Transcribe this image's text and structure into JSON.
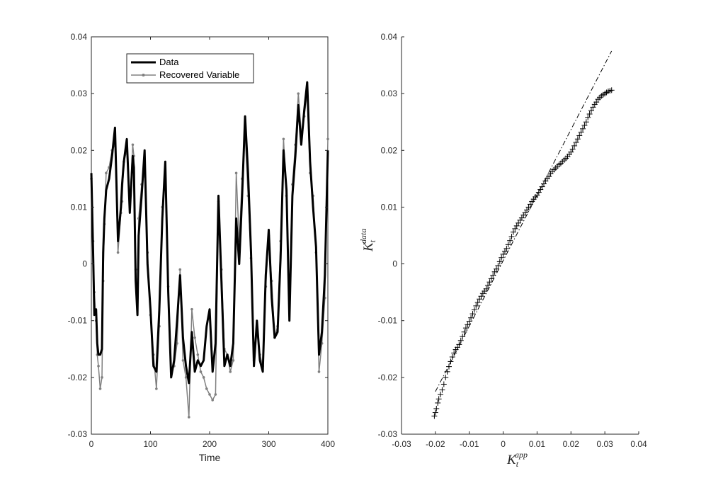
{
  "chart_data": [
    {
      "type": "line",
      "xlabel": "Time",
      "ylabel": "",
      "xlim": [
        0,
        400
      ],
      "ylim": [
        -0.03,
        0.04
      ],
      "xticks": [
        "0",
        "100",
        "200",
        "300",
        "400"
      ],
      "yticks": [
        "-0.03",
        "-0.02",
        "-0.01",
        "0",
        "0.01",
        "0.02",
        "0.03",
        "0.04"
      ],
      "legend": {
        "placement": "top-left",
        "entries": [
          "Data",
          "Recovered Variable"
        ]
      },
      "series": [
        {
          "name": "Data",
          "color": "#000000",
          "x": [
            0,
            3,
            5,
            8,
            10,
            12,
            15,
            18,
            20,
            22,
            25,
            30,
            35,
            40,
            45,
            50,
            52,
            55,
            60,
            65,
            70,
            72,
            75,
            78,
            80,
            85,
            90,
            95,
            100,
            105,
            110,
            115,
            120,
            125,
            130,
            135,
            140,
            145,
            150,
            155,
            160,
            165,
            170,
            175,
            180,
            185,
            190,
            195,
            200,
            205,
            210,
            215,
            220,
            225,
            230,
            235,
            240,
            245,
            250,
            255,
            260,
            265,
            270,
            275,
            280,
            285,
            290,
            295,
            300,
            305,
            310,
            315,
            320,
            325,
            330,
            335,
            340,
            345,
            350,
            355,
            360,
            365,
            370,
            375,
            380,
            385,
            390,
            395,
            400
          ],
          "y": [
            0.016,
            0.002,
            -0.009,
            -0.008,
            -0.014,
            -0.016,
            -0.016,
            -0.015,
            0.002,
            0.008,
            0.013,
            0.015,
            0.019,
            0.024,
            0.004,
            0.01,
            0.014,
            0.018,
            0.022,
            0.009,
            0.019,
            0.017,
            -0.003,
            -0.009,
            0.005,
            0.012,
            0.02,
            0.0,
            -0.008,
            -0.018,
            -0.019,
            -0.008,
            0.008,
            0.018,
            -0.005,
            -0.02,
            -0.017,
            -0.01,
            -0.002,
            -0.013,
            -0.018,
            -0.021,
            -0.012,
            -0.019,
            -0.017,
            -0.018,
            -0.017,
            -0.011,
            -0.008,
            -0.019,
            -0.014,
            0.012,
            -0.003,
            -0.018,
            -0.016,
            -0.018,
            -0.014,
            0.008,
            0.0,
            0.012,
            0.026,
            0.016,
            0.002,
            -0.018,
            -0.01,
            -0.017,
            -0.019,
            -0.002,
            0.006,
            -0.006,
            -0.013,
            -0.012,
            0.001,
            0.02,
            0.013,
            -0.01,
            0.012,
            0.019,
            0.028,
            0.021,
            0.027,
            0.032,
            0.018,
            0.01,
            0.003,
            -0.016,
            -0.012,
            -0.002,
            0.02
          ]
        },
        {
          "name": "Recovered Variable",
          "color": "#808080",
          "x": [
            0,
            3,
            5,
            8,
            10,
            12,
            15,
            18,
            20,
            22,
            25,
            30,
            35,
            40,
            45,
            50,
            52,
            55,
            60,
            65,
            70,
            72,
            75,
            78,
            80,
            85,
            90,
            95,
            100,
            105,
            110,
            115,
            120,
            125,
            130,
            135,
            140,
            145,
            150,
            155,
            160,
            165,
            170,
            175,
            180,
            185,
            190,
            195,
            200,
            205,
            210,
            215,
            220,
            225,
            230,
            235,
            240,
            245,
            250,
            255,
            260,
            265,
            270,
            275,
            280,
            285,
            290,
            295,
            300,
            305,
            310,
            315,
            320,
            325,
            330,
            335,
            340,
            345,
            350,
            355,
            360,
            365,
            370,
            375,
            380,
            385,
            390,
            395,
            400
          ],
          "y": [
            0.015,
            0.004,
            -0.005,
            -0.01,
            -0.016,
            -0.018,
            -0.022,
            -0.02,
            -0.003,
            0.007,
            0.016,
            0.017,
            0.02,
            0.021,
            0.002,
            0.009,
            0.011,
            0.018,
            0.02,
            0.01,
            0.021,
            0.019,
            -0.001,
            -0.006,
            0.008,
            0.014,
            0.016,
            0.002,
            -0.009,
            -0.016,
            -0.022,
            -0.011,
            0.01,
            0.015,
            -0.004,
            -0.019,
            -0.018,
            -0.014,
            -0.001,
            -0.017,
            -0.02,
            -0.027,
            -0.008,
            -0.013,
            -0.016,
            -0.019,
            -0.02,
            -0.022,
            -0.023,
            -0.024,
            -0.023,
            0.011,
            -0.001,
            -0.015,
            -0.016,
            -0.019,
            -0.017,
            0.016,
            0.004,
            0.015,
            0.023,
            0.012,
            0.001,
            -0.017,
            -0.012,
            -0.016,
            -0.018,
            -0.004,
            0.005,
            -0.003,
            -0.013,
            -0.011,
            0.004,
            0.022,
            0.012,
            -0.007,
            0.014,
            0.021,
            0.03,
            0.023,
            0.026,
            0.03,
            0.016,
            0.012,
            0.002,
            -0.019,
            -0.014,
            -0.006,
            0.022
          ]
        }
      ]
    },
    {
      "type": "scatter",
      "xlim": [
        -0.03,
        0.04
      ],
      "ylim": [
        -0.03,
        0.04
      ],
      "xticks": [
        "-0.03",
        "-0.02",
        "-0.01",
        "0",
        "0.01",
        "0.02",
        "0.03",
        "0.04"
      ],
      "yticks": [
        "-0.03",
        "-0.02",
        "-0.01",
        "0",
        "0.01",
        "0.02",
        "0.03",
        "0.04"
      ],
      "xlabel_base": "K",
      "xlabel_sub": "t",
      "xlabel_sup": "app",
      "ylabel_base": "K",
      "ylabel_sub": "t",
      "ylabel_sup": "data",
      "marker": "+",
      "reference_line": {
        "style": "dash-dot",
        "x": [
          -0.02,
          0.032
        ],
        "y": [
          -0.0225,
          0.0375
        ]
      },
      "points": {
        "x": [
          -0.0203,
          -0.02,
          -0.0197,
          -0.0193,
          -0.019,
          -0.0185,
          -0.018,
          -0.0175,
          -0.017,
          -0.0165,
          -0.016,
          -0.0155,
          -0.015,
          -0.0145,
          -0.014,
          -0.0135,
          -0.013,
          -0.0125,
          -0.012,
          -0.0115,
          -0.011,
          -0.0105,
          -0.01,
          -0.0095,
          -0.009,
          -0.0085,
          -0.008,
          -0.0075,
          -0.007,
          -0.0065,
          -0.006,
          -0.0055,
          -0.005,
          -0.0045,
          -0.004,
          -0.0035,
          -0.003,
          -0.0025,
          -0.002,
          -0.0015,
          -0.001,
          -0.0005,
          0.0,
          0.0005,
          0.001,
          0.0015,
          0.002,
          0.0025,
          0.003,
          0.0035,
          0.004,
          0.0045,
          0.005,
          0.0055,
          0.006,
          0.0065,
          0.007,
          0.0075,
          0.008,
          0.0085,
          0.009,
          0.0095,
          0.01,
          0.0105,
          0.011,
          0.0115,
          0.012,
          0.0125,
          0.013,
          0.0135,
          0.014,
          0.0145,
          0.015,
          0.0155,
          0.016,
          0.0165,
          0.017,
          0.0175,
          0.018,
          0.0185,
          0.019,
          0.0195,
          0.02,
          0.0205,
          0.021,
          0.0215,
          0.022,
          0.0225,
          0.023,
          0.0235,
          0.024,
          0.0245,
          0.025,
          0.0255,
          0.026,
          0.0265,
          0.027,
          0.0275,
          0.028,
          0.0285,
          0.029,
          0.0295,
          0.03,
          0.0305,
          0.031,
          0.0315,
          0.032
        ],
        "y": [
          -0.0268,
          -0.0262,
          -0.0255,
          -0.0245,
          -0.0238,
          -0.023,
          -0.0222,
          -0.0212,
          -0.02,
          -0.019,
          -0.0181,
          -0.0172,
          -0.0164,
          -0.0157,
          -0.0151,
          -0.0147,
          -0.0142,
          -0.0135,
          -0.0128,
          -0.012,
          -0.0113,
          -0.0107,
          -0.0101,
          -0.0095,
          -0.0088,
          -0.0081,
          -0.0074,
          -0.0068,
          -0.0062,
          -0.0057,
          -0.0052,
          -0.0048,
          -0.0044,
          -0.0038,
          -0.0032,
          -0.0026,
          -0.002,
          -0.0014,
          -0.0009,
          -0.0003,
          0.0004,
          0.0011,
          0.0017,
          0.0022,
          0.0027,
          0.0034,
          0.0041,
          0.0048,
          0.0056,
          0.0062,
          0.0067,
          0.0072,
          0.0077,
          0.0081,
          0.0086,
          0.009,
          0.0095,
          0.01,
          0.0105,
          0.011,
          0.0114,
          0.0118,
          0.0121,
          0.0126,
          0.0131,
          0.0136,
          0.0141,
          0.0146,
          0.015,
          0.0154,
          0.0159,
          0.0163,
          0.0166,
          0.0169,
          0.0172,
          0.0175,
          0.0177,
          0.018,
          0.0183,
          0.0186,
          0.0189,
          0.0193,
          0.0197,
          0.0202,
          0.0208,
          0.0214,
          0.022,
          0.0226,
          0.0232,
          0.0238,
          0.0244,
          0.025,
          0.0258,
          0.0264,
          0.027,
          0.0276,
          0.0281,
          0.0285,
          0.029,
          0.0293,
          0.0296,
          0.0298,
          0.03,
          0.0302,
          0.0304,
          0.0305,
          0.0306
        ]
      }
    }
  ]
}
